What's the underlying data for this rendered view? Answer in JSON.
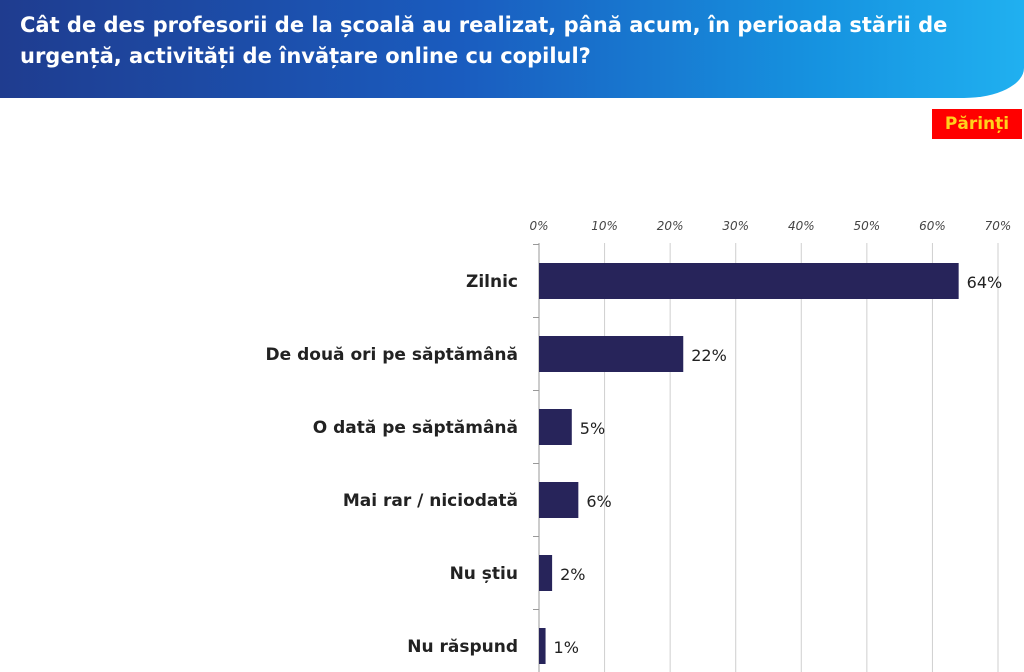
{
  "header": {
    "title": "Cât de des profesorii de la școală au realizat, până acum, în perioada stării de urgență, activități de învățare online cu copilul?",
    "badge": "Părinți"
  },
  "colors": {
    "bar": "#27245a",
    "badge_bg": "#ff0000",
    "badge_text": "#ffd21c",
    "header_gradient_start": "#1f3c8f",
    "header_gradient_end": "#20b0f0"
  },
  "chart_data": {
    "type": "bar",
    "orientation": "horizontal",
    "categories": [
      "Zilnic",
      "De două ori pe săptămână",
      "O dată pe săptămână",
      "Mai rar / niciodată",
      "Nu știu",
      "Nu răspund"
    ],
    "values": [
      64,
      22,
      5,
      6,
      2,
      1
    ],
    "value_labels": [
      "64%",
      "22%",
      "5%",
      "6%",
      "2%",
      "1%"
    ],
    "xlim": [
      0,
      70
    ],
    "x_ticks": [
      0,
      10,
      20,
      30,
      40,
      50,
      60,
      70
    ],
    "x_tick_labels": [
      "0%",
      "10%",
      "20%",
      "30%",
      "40%",
      "50%",
      "60%",
      "70%"
    ],
    "x_axis_position": "top",
    "grid": true
  }
}
